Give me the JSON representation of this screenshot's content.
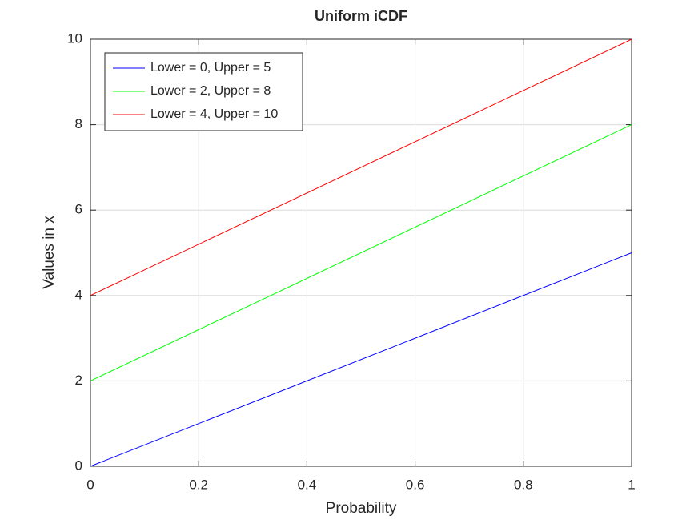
{
  "chart_data": {
    "type": "line",
    "title": "Uniform iCDF",
    "x_label": "Probability",
    "y_label": "Values in x",
    "x": [
      0,
      1
    ],
    "series": [
      {
        "name": "Lower = 0, Upper = 5",
        "color": "#0000ff",
        "values": [
          0,
          5
        ]
      },
      {
        "name": "Lower = 2, Upper = 8",
        "color": "#00ff00",
        "values": [
          2,
          8
        ]
      },
      {
        "name": "Lower = 4, Upper = 10",
        "color": "#ff0000",
        "values": [
          4,
          10
        ]
      }
    ],
    "xlim": [
      0,
      1
    ],
    "xticks": [
      0,
      0.2,
      0.4,
      0.6,
      0.8,
      1
    ],
    "ylim": [
      0,
      10
    ],
    "yticks": [
      0,
      2,
      4,
      6,
      8,
      10
    ],
    "grid": true,
    "legend_position": "upper-left"
  }
}
